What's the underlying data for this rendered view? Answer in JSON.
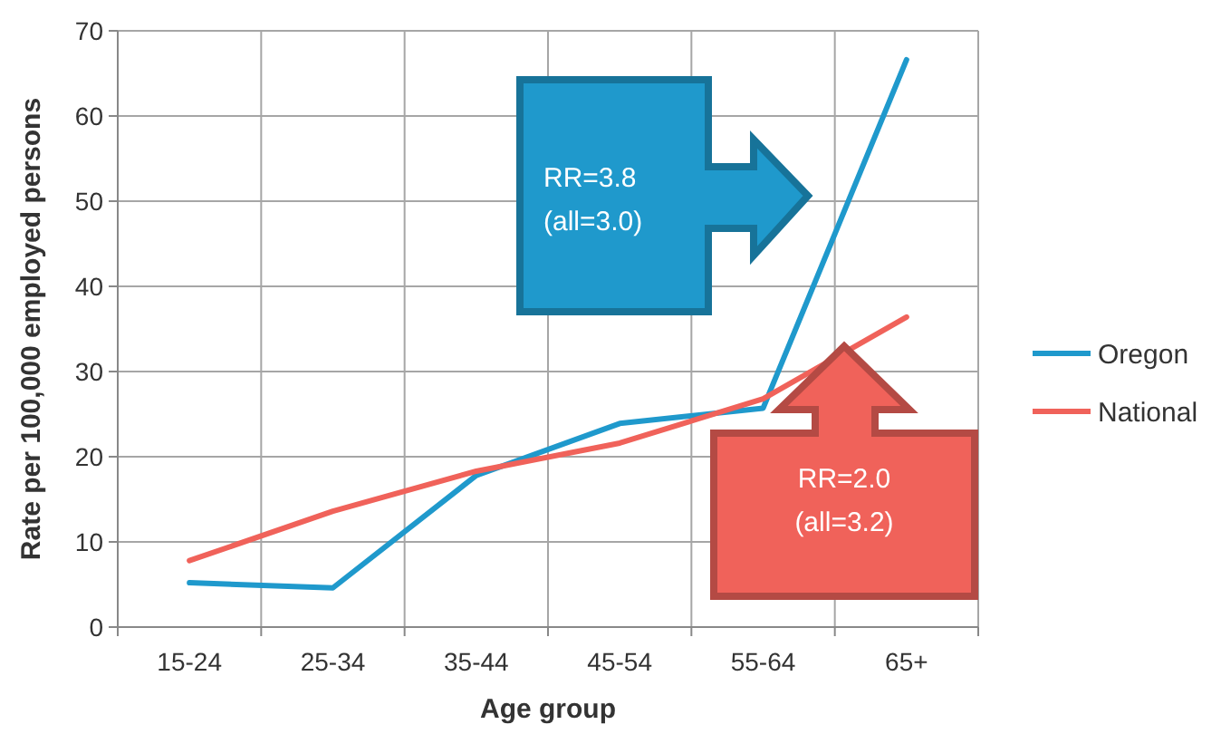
{
  "chart_data": {
    "type": "line",
    "xlabel": "Age group",
    "ylabel": "Rate per 100,000 employed persons",
    "categories": [
      "15-24",
      "25-34",
      "35-44",
      "45-54",
      "55-64",
      "65+"
    ],
    "series": [
      {
        "name": "Oregon",
        "color": "#1f99cc",
        "values": [
          5.2,
          4.6,
          17.8,
          23.9,
          25.7,
          66.6
        ]
      },
      {
        "name": "National",
        "color": "#f0625a",
        "values": [
          7.8,
          13.6,
          18.3,
          21.6,
          26.8,
          36.4
        ]
      }
    ],
    "ylim": [
      0,
      70
    ],
    "yticks": [
      0,
      10,
      20,
      30,
      40,
      50,
      60,
      70
    ],
    "grid": true,
    "legend": "right",
    "marker": "none",
    "line_style": "solid",
    "annotations": [
      "RR=3.8\n(all=3.0)",
      "RR=2.0\n(all=3.2)"
    ]
  }
}
